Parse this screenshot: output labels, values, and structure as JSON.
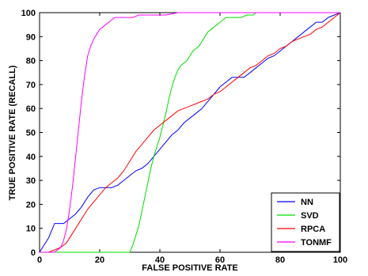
{
  "chart_data": {
    "type": "line",
    "title": "",
    "xlabel": "FALSE POSITIVE RATE",
    "ylabel": "TRUE POSITIVE RATE (RECALL)",
    "xlim": [
      0,
      100
    ],
    "ylim": [
      0,
      100
    ],
    "xticks": [
      0,
      20,
      40,
      60,
      80,
      100
    ],
    "yticks": [
      0,
      10,
      20,
      30,
      40,
      50,
      60,
      70,
      80,
      90,
      100
    ],
    "grid": false,
    "legend_position": "bottom-right",
    "series": [
      {
        "name": "NN",
        "color": "#0000ff",
        "x": [
          0,
          1,
          2,
          3,
          4,
          5,
          7,
          8,
          10,
          12,
          14,
          16,
          18,
          20,
          22,
          24,
          26,
          28,
          30,
          32,
          34,
          36,
          38,
          40,
          42,
          44,
          46,
          48,
          50,
          52,
          54,
          56,
          58,
          60,
          62,
          64,
          66,
          68,
          70,
          72,
          74,
          76,
          78,
          80,
          82,
          84,
          86,
          88,
          90,
          92,
          94,
          96,
          98,
          100
        ],
        "y": [
          0,
          2,
          4,
          6,
          9,
          12,
          12,
          12,
          14,
          16,
          19,
          23,
          26,
          27,
          27,
          27,
          28,
          30,
          32,
          34,
          35,
          37,
          40,
          43,
          46,
          49,
          51,
          54,
          56,
          58,
          60,
          63,
          66,
          69,
          71,
          73,
          73,
          73,
          75,
          77,
          79,
          81,
          82,
          84,
          86,
          88,
          90,
          92,
          94,
          96,
          96,
          98,
          99,
          100
        ]
      },
      {
        "name": "SVD",
        "color": "#00dd00",
        "x": [
          0,
          30,
          31,
          32,
          33,
          34,
          35,
          36,
          37,
          38,
          39,
          40,
          41,
          42,
          43,
          44,
          45,
          46,
          47,
          48,
          49,
          50,
          51,
          52,
          53,
          54,
          55,
          56,
          57,
          58,
          59,
          60,
          61,
          62,
          63,
          64,
          65,
          67,
          69,
          71,
          72,
          100
        ],
        "y": [
          0,
          0,
          3,
          7,
          11,
          17,
          23,
          29,
          35,
          40,
          44,
          48,
          53,
          58,
          64,
          69,
          73,
          76,
          78,
          79,
          80,
          82,
          84,
          85,
          86,
          88,
          90,
          92,
          93,
          94,
          95,
          96,
          97,
          98,
          98,
          98,
          98,
          98,
          99,
          99,
          100,
          100
        ]
      },
      {
        "name": "RPCA",
        "color": "#ff0000",
        "x": [
          0,
          3,
          5,
          7,
          9,
          10,
          12,
          14,
          16,
          18,
          20,
          22,
          24,
          26,
          28,
          30,
          32,
          34,
          36,
          38,
          40,
          42,
          44,
          46,
          48,
          50,
          52,
          54,
          56,
          58,
          60,
          62,
          64,
          66,
          68,
          70,
          72,
          74,
          76,
          78,
          80,
          82,
          84,
          86,
          88,
          90,
          92,
          94,
          96,
          98,
          100
        ],
        "y": [
          0,
          0,
          1,
          2,
          4,
          6,
          10,
          14,
          18,
          21,
          24,
          27,
          29,
          31,
          34,
          38,
          42,
          45,
          48,
          51,
          53,
          55,
          57,
          59,
          60,
          61,
          62,
          63,
          64,
          66,
          67,
          69,
          71,
          73,
          75,
          77,
          78,
          80,
          82,
          83,
          85,
          86,
          88,
          89,
          90,
          91,
          93,
          94,
          96,
          98,
          100
        ]
      },
      {
        "name": "TONMF",
        "color": "#ff00ff",
        "x": [
          0,
          5,
          7,
          8,
          9,
          10,
          11,
          12,
          13,
          14,
          15,
          16,
          17,
          18,
          19,
          20,
          21,
          22,
          23,
          24,
          25,
          27,
          29,
          31,
          33,
          35,
          37,
          39,
          42,
          46,
          50,
          100
        ],
        "y": [
          0,
          0,
          2,
          5,
          10,
          18,
          28,
          40,
          52,
          64,
          74,
          82,
          86,
          89,
          91,
          93,
          94,
          95,
          96,
          97,
          98,
          98,
          98,
          98,
          99,
          99,
          99,
          99,
          99,
          100,
          100,
          100
        ]
      }
    ]
  }
}
